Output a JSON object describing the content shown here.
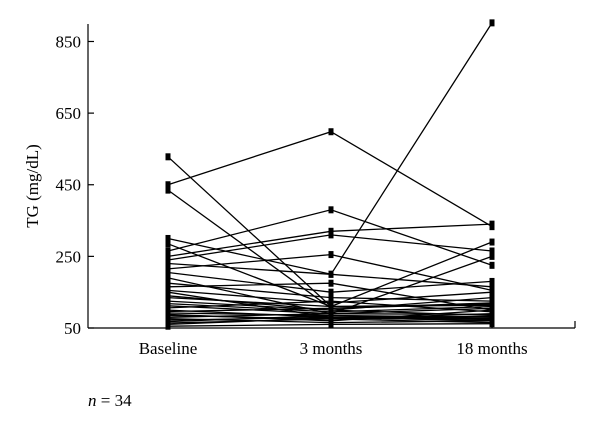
{
  "chart_data": {
    "type": "line",
    "title": "",
    "xlabel": "",
    "ylabel": "TG (mg/dL)",
    "ylim": [
      50,
      910
    ],
    "yticks": [
      50,
      250,
      450,
      650,
      850
    ],
    "categories": [
      "Baseline",
      "3 months",
      "18 months"
    ],
    "grid": false,
    "legend": "none",
    "note": "n = 34",
    "series": [
      {
        "values": [
          528,
          110,
          113
        ]
      },
      {
        "values": [
          450,
          598,
          333
        ]
      },
      {
        "values": [
          435,
          105,
          118
        ]
      },
      {
        "values": [
          300,
          200,
          902
        ]
      },
      {
        "values": [
          285,
          110,
          290
        ]
      },
      {
        "values": [
          265,
          380,
          225
        ]
      },
      {
        "values": [
          250,
          320,
          340
        ]
      },
      {
        "values": [
          240,
          310,
          265
        ]
      },
      {
        "values": [
          230,
          200,
          165
        ]
      },
      {
        "values": [
          215,
          255,
          155
        ]
      },
      {
        "values": [
          205,
          150,
          180
        ]
      },
      {
        "values": [
          190,
          90,
          250
        ]
      },
      {
        "values": [
          175,
          135,
          125
        ]
      },
      {
        "values": [
          165,
          175,
          100
        ]
      },
      {
        "values": [
          155,
          120,
          150
        ]
      },
      {
        "values": [
          150,
          80,
          70
        ]
      },
      {
        "values": [
          140,
          100,
          135
        ]
      },
      {
        "values": [
          135,
          110,
          115
        ]
      },
      {
        "values": [
          125,
          100,
          85
        ]
      },
      {
        "values": [
          118,
          95,
          110
        ]
      },
      {
        "values": [
          112,
          90,
          105
        ]
      },
      {
        "values": [
          106,
          125,
          95
        ]
      },
      {
        "values": [
          100,
          80,
          75
        ]
      },
      {
        "values": [
          96,
          105,
          120
        ]
      },
      {
        "values": [
          92,
          85,
          80
        ]
      },
      {
        "values": [
          88,
          70,
          100
        ]
      },
      {
        "values": [
          85,
          75,
          90
        ]
      },
      {
        "values": [
          80,
          90,
          88
        ]
      },
      {
        "values": [
          76,
          65,
          70
        ]
      },
      {
        "values": [
          72,
          80,
          82
        ]
      },
      {
        "values": [
          68,
          85,
          76
        ]
      },
      {
        "values": [
          64,
          75,
          65
        ]
      },
      {
        "values": [
          60,
          78,
          72
        ]
      },
      {
        "values": [
          55,
          60,
          62
        ]
      }
    ]
  }
}
